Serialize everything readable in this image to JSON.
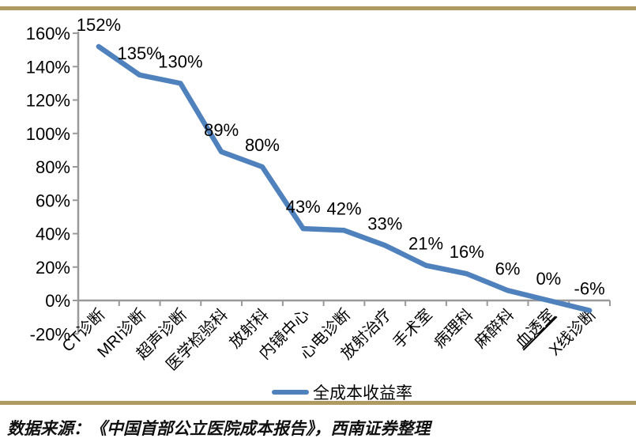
{
  "chart_data": {
    "type": "line",
    "title": "",
    "categories": [
      "CT诊断",
      "MRI诊断",
      "超声诊断",
      "医学检验科",
      "放射科",
      "内镜中心",
      "心电诊断",
      "放射治疗",
      "手术室",
      "病理科",
      "麻醉科",
      "血透室",
      "X线诊断"
    ],
    "series": [
      {
        "name": "全成本收益率",
        "values": [
          152,
          135,
          130,
          89,
          80,
          43,
          42,
          33,
          21,
          16,
          6,
          0,
          -6
        ]
      }
    ],
    "data_labels": [
      "152%",
      "135%",
      "130%",
      "89%",
      "80%",
      "43%",
      "42%",
      "33%",
      "21%",
      "16%",
      "6%",
      "0%",
      "-6%"
    ],
    "y_ticks": [
      {
        "value": 160,
        "label": "160%"
      },
      {
        "value": 140,
        "label": "140%"
      },
      {
        "value": 120,
        "label": "120%"
      },
      {
        "value": 100,
        "label": "100%"
      },
      {
        "value": 80,
        "label": "80%"
      },
      {
        "value": 60,
        "label": "60%"
      },
      {
        "value": 40,
        "label": "40%"
      },
      {
        "value": 20,
        "label": "20%"
      },
      {
        "value": 0,
        "label": "0%"
      },
      {
        "value": -20,
        "label": "-20%"
      }
    ],
    "ylim": [
      -20,
      160
    ],
    "grid": false,
    "legend_position": "bottom",
    "underlined_category": "血透室",
    "colors": {
      "line": "#4F81BD",
      "axis": "#999999",
      "accent": "#AF9A62",
      "text": "#000000"
    }
  },
  "legend": {
    "label": "全成本收益率"
  },
  "footer": {
    "source": "数据来源：《中国首部公立医院成本报告》，西南证券整理"
  }
}
